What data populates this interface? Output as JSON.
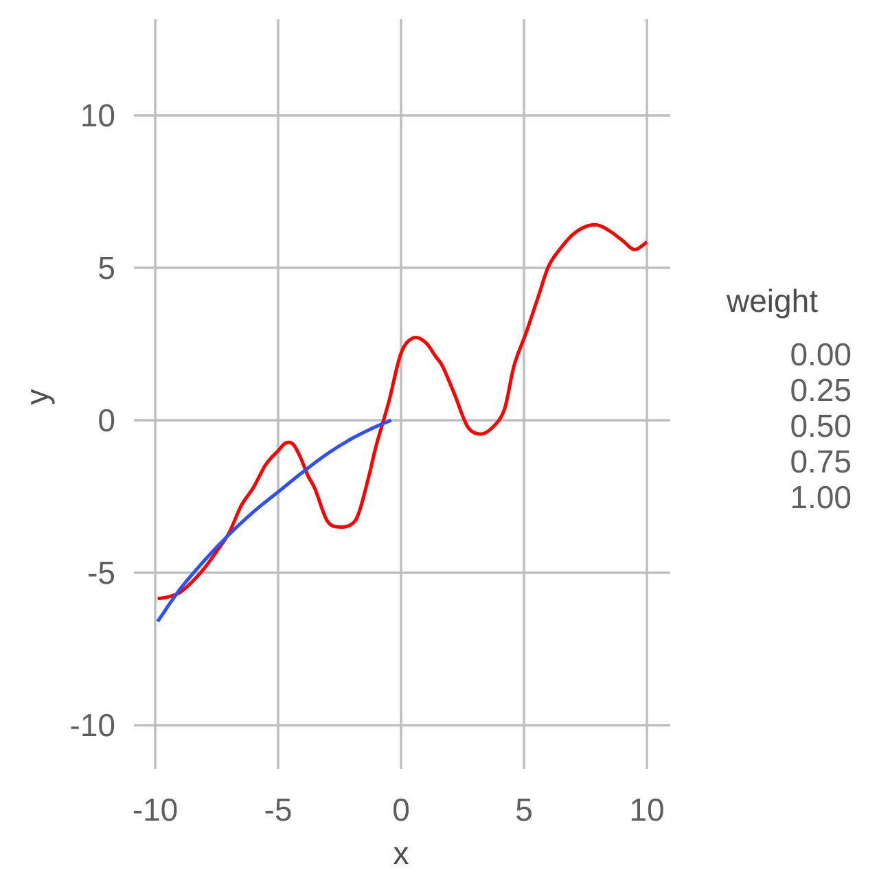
{
  "chart_data": {
    "type": "line",
    "xlabel": "x",
    "ylabel": "y",
    "xlim": [
      -10.2,
      10.2
    ],
    "ylim": [
      -11.5,
      13.2
    ],
    "x_ticks": [
      -10,
      -5,
      0,
      5,
      10
    ],
    "x_tick_labels": [
      "-10",
      "-5",
      "0",
      "5",
      "10"
    ],
    "y_ticks": [
      -10,
      -5,
      0,
      5,
      10
    ],
    "y_tick_labels": [
      "-10",
      "-5",
      "0",
      "5",
      "10"
    ],
    "grid": true,
    "legend": {
      "title": "weight",
      "position": "right",
      "labels": [
        "0.00",
        "0.25",
        "0.50",
        "0.75",
        "1.00"
      ]
    },
    "series": [
      {
        "color": "#ff0000",
        "x": [
          -9.9,
          -9.5,
          -9.0,
          -8.5,
          -8.0,
          -7.5,
          -7.0,
          -6.5,
          -6.0,
          -5.5,
          -5.0,
          -4.7,
          -4.4,
          -4.1,
          -3.8,
          -3.5,
          -3.0,
          -2.5,
          -2.0,
          -1.7,
          -1.3,
          -1.0,
          -0.5,
          0.0,
          0.5,
          1.0,
          1.4,
          1.7,
          2.2,
          2.7,
          3.2,
          3.7,
          4.2,
          4.6,
          5.1,
          5.6,
          6.0,
          6.5,
          7.0,
          7.5,
          8.0,
          8.5,
          9.0,
          9.5,
          10.0
        ],
        "y": [
          -5.85,
          -5.8,
          -5.65,
          -5.3,
          -4.85,
          -4.3,
          -3.7,
          -2.8,
          -2.2,
          -1.45,
          -1.0,
          -0.75,
          -0.78,
          -1.2,
          -1.8,
          -2.25,
          -3.3,
          -3.5,
          -3.4,
          -3.0,
          -1.8,
          -0.8,
          0.6,
          2.2,
          2.7,
          2.55,
          2.1,
          1.75,
          0.8,
          -0.2,
          -0.45,
          -0.25,
          0.35,
          1.8,
          2.9,
          4.1,
          5.05,
          5.65,
          6.1,
          6.35,
          6.4,
          6.2,
          5.9,
          5.6,
          5.85
        ]
      },
      {
        "color": "#2e50f5",
        "x": [
          -9.9,
          -9.0,
          -8.0,
          -7.0,
          -6.0,
          -5.0,
          -4.0,
          -3.0,
          -2.0,
          -1.0,
          -0.4
        ],
        "y": [
          -6.6,
          -5.55,
          -4.6,
          -3.75,
          -3.0,
          -2.35,
          -1.7,
          -1.1,
          -0.6,
          -0.2,
          0.0
        ]
      }
    ]
  }
}
